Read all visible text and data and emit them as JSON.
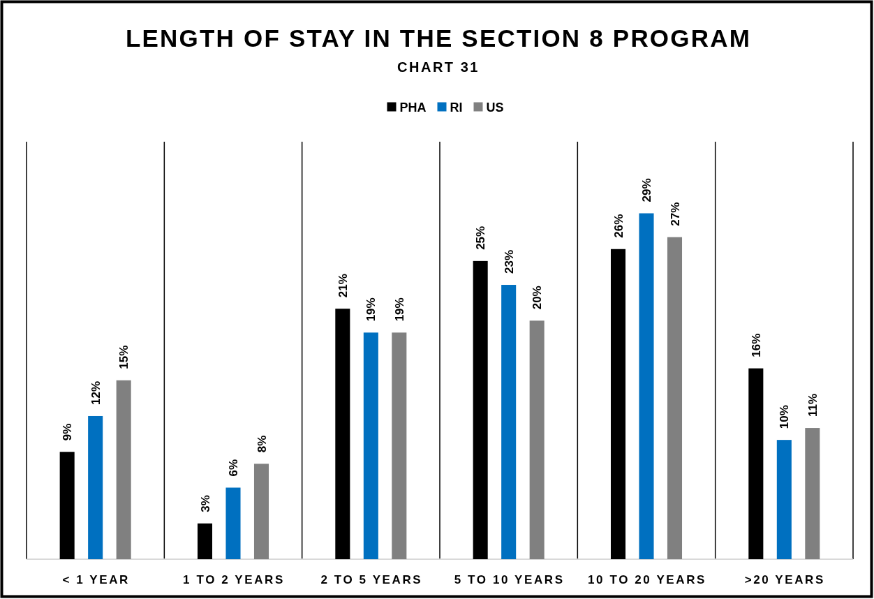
{
  "chart_data": {
    "type": "bar",
    "title": "LENGTH OF STAY IN THE SECTION 8 PROGRAM",
    "subtitle": "CHART 31",
    "categories": [
      "< 1 YEAR",
      "1 TO 2 YEARS",
      "2 TO 5 YEARS",
      "5 TO 10 YEARS",
      "10 TO 20 YEARS",
      ">20 YEARS"
    ],
    "series": [
      {
        "name": "PHA",
        "color": "#000000",
        "values": [
          9,
          3,
          21,
          25,
          26,
          16
        ],
        "value_labels": [
          "9%",
          "3%",
          "21%",
          "25%",
          "26%",
          "16%"
        ]
      },
      {
        "name": "RI",
        "color": "#0070c0",
        "values": [
          12,
          6,
          19,
          23,
          29,
          10
        ],
        "value_labels": [
          "12%",
          "6%",
          "19%",
          "23%",
          "29%",
          "10%"
        ]
      },
      {
        "name": "US",
        "color": "#808080",
        "values": [
          15,
          8,
          19,
          20,
          27,
          11
        ],
        "value_labels": [
          "15%",
          "8%",
          "19%",
          "20%",
          "27%",
          "11%"
        ]
      }
    ],
    "ylim": [
      0,
      35
    ],
    "tick_labels": "x",
    "grid": "x",
    "legend": "top"
  }
}
